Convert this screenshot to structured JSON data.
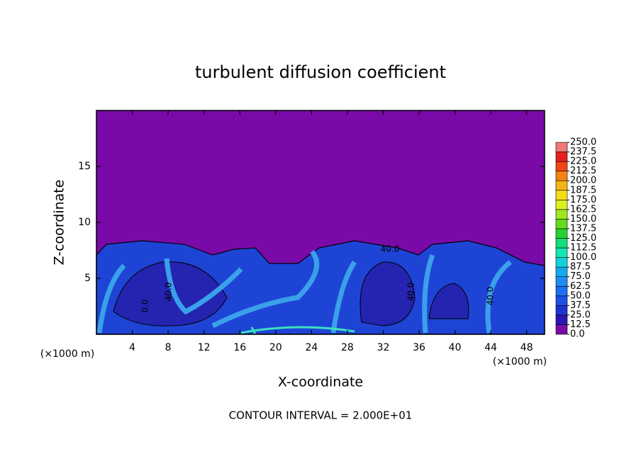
{
  "chart_data": {
    "type": "contour",
    "title": "turbulent diffusion coefficient",
    "xlabel": "X-coordinate",
    "ylabel": "Z-coordinate",
    "x_unit_label": "(×1000 m)",
    "y_unit_label": "(×1000 m)",
    "caption": "CONTOUR INTERVAL = 2.000E+01",
    "xlim": [
      0,
      50
    ],
    "xticks": [
      4,
      8,
      12,
      16,
      20,
      24,
      28,
      32,
      36,
      40,
      44,
      48
    ],
    "ylim": [
      0,
      20
    ],
    "yticks": [
      5,
      10,
      15
    ],
    "grid": false,
    "contour_labels": [
      "40.0",
      "40.0",
      "40.0",
      "40.0",
      "0.0"
    ],
    "colorbar": {
      "lim": [
        0,
        250
      ],
      "ticks": [
        {
          "value": 0,
          "label": "0.0"
        },
        {
          "value": 12.5,
          "label": "12.5"
        },
        {
          "value": 25,
          "label": "25.0"
        },
        {
          "value": 37.5,
          "label": "37.5"
        },
        {
          "value": 50,
          "label": "50.0"
        },
        {
          "value": 62.5,
          "label": "62.5"
        },
        {
          "value": 75,
          "label": "75.0"
        },
        {
          "value": 87.5,
          "label": "87.5"
        },
        {
          "value": 100,
          "label": "100.0"
        },
        {
          "value": 112.5,
          "label": "112.5"
        },
        {
          "value": 125,
          "label": "125.0"
        },
        {
          "value": 137.5,
          "label": "137.5"
        },
        {
          "value": 150,
          "label": "150.0"
        },
        {
          "value": 162.5,
          "label": "162.5"
        },
        {
          "value": 175,
          "label": "175.0"
        },
        {
          "value": 187.5,
          "label": "187.5"
        },
        {
          "value": 200,
          "label": "200.0"
        },
        {
          "value": 212.5,
          "label": "212.5"
        },
        {
          "value": 225,
          "label": "225.0"
        },
        {
          "value": 237.5,
          "label": "237.5"
        },
        {
          "value": 250,
          "label": "250.0"
        }
      ],
      "colors": [
        "#7a0aa8",
        "#2c14b4",
        "#1e32d2",
        "#1e50e6",
        "#1e6ef0",
        "#1e8cf5",
        "#14aaf0",
        "#14d2dc",
        "#14e6b4",
        "#14dc78",
        "#28d232",
        "#64dc1e",
        "#a0e61e",
        "#dcf01e",
        "#f5dc14",
        "#f5b414",
        "#f58214",
        "#f04614",
        "#e61e1e",
        "#f07878"
      ]
    }
  }
}
